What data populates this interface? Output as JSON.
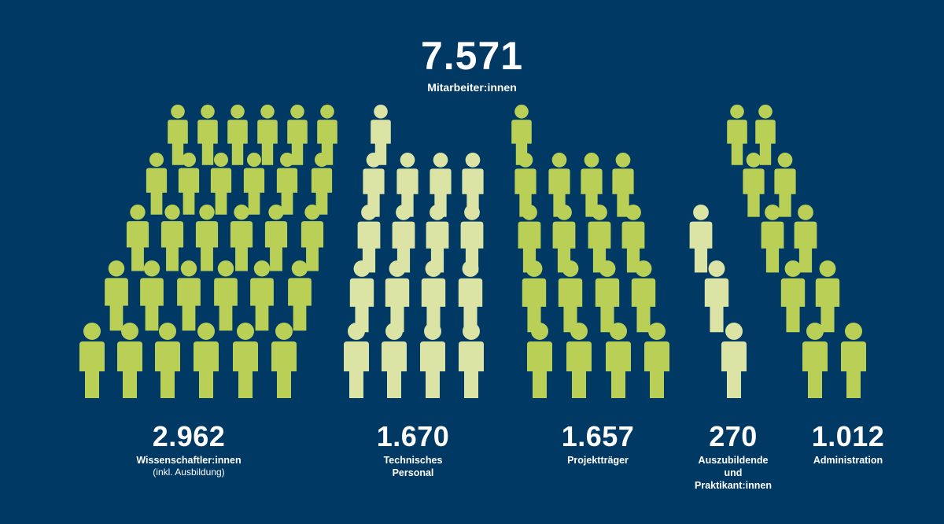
{
  "total": {
    "value": "7.571",
    "label": "Mitarbeiter:innen"
  },
  "colors": {
    "background": "#003964",
    "figure_green": "#b9cf55",
    "figure_light": "#dbe4a4",
    "text": "#ffffff"
  },
  "chart_data": {
    "type": "bar",
    "categories": [
      "Wissenschaftler:innen",
      "Technisches Personal",
      "Projektträger",
      "Auszubildende und Praktikant:innen",
      "Administration"
    ],
    "values": [
      2962,
      1670,
      1657,
      270,
      1012
    ],
    "total": 7571,
    "encoding": "pictogram (person icons)"
  },
  "groups": [
    {
      "id": "wissenschaftler",
      "value": "2.962",
      "lines": [
        "Wissenschaftler:innen"
      ],
      "sub": "(inkl. Ausbildung)",
      "color": "#b9cf55"
    },
    {
      "id": "technisches-personal",
      "value": "1.670",
      "lines": [
        "Technisches",
        "Personal"
      ],
      "sub": "",
      "color": "#dbe4a4"
    },
    {
      "id": "projekttraeger",
      "value": "1.657",
      "lines": [
        "Projektträger"
      ],
      "sub": "",
      "color": "#b9cf55"
    },
    {
      "id": "auszubildende",
      "value": "270",
      "lines": [
        "Auszubildende",
        "und",
        "Praktikant:innen"
      ],
      "sub": "",
      "color": "#dbe4a4"
    },
    {
      "id": "administration",
      "value": "1.012",
      "lines": [
        "Administration"
      ],
      "sub": "",
      "color": "#b9cf55"
    }
  ]
}
